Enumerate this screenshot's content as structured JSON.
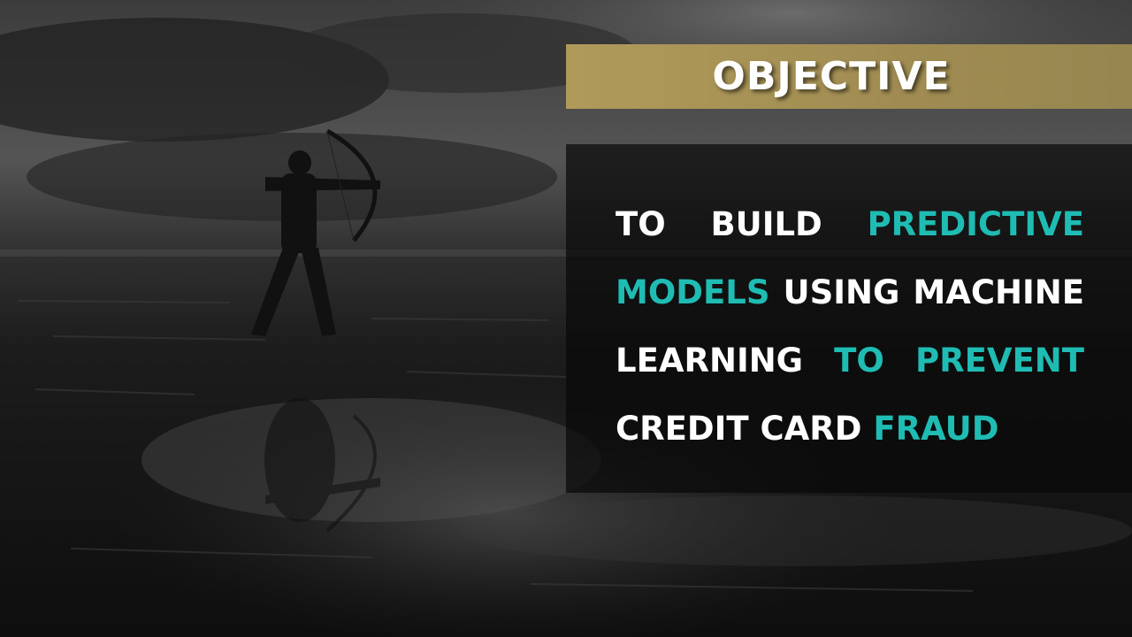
{
  "slide": {
    "title": "OBJECTIVE",
    "objective_segments": [
      {
        "text": "TO BUILD ",
        "highlight": false
      },
      {
        "text": "PREDICTIVE MODELS",
        "highlight": true
      },
      {
        "text": " USING MACHINE LEARNING ",
        "highlight": false
      },
      {
        "text": "TO PREVENT",
        "highlight": true
      },
      {
        "text": " CREDIT CARD ",
        "highlight": false
      },
      {
        "text": "FRAUD",
        "highlight": true
      }
    ]
  },
  "colors": {
    "title_banner": "#b09a5a",
    "highlight": "#1fbcb3",
    "text": "#ffffff",
    "panel": "#080808"
  },
  "background": {
    "description_icon": "archer-silhouette-icon"
  }
}
